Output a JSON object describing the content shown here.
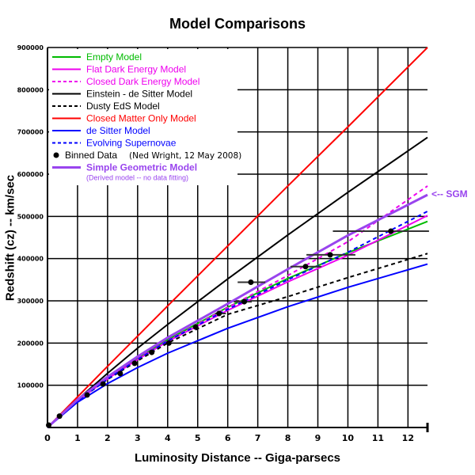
{
  "chart_data": {
    "type": "line",
    "title": "Model Comparisons",
    "xlabel": "Luminosity Distance  --  Giga-parsecs",
    "ylabel": "Redshift (cz)  -- km/sec",
    "xlim": [
      0,
      12.65
    ],
    "ylim": [
      0,
      900000
    ],
    "xticks": [
      0,
      1,
      2,
      3,
      4,
      5,
      6,
      7,
      8,
      9,
      10,
      11,
      12
    ],
    "yticks": [
      100000,
      200000,
      300000,
      400000,
      500000,
      600000,
      700000,
      800000,
      900000
    ],
    "grid": true,
    "legend_position": "top-left",
    "series": [
      {
        "name": "Empty Model",
        "color": "#00bb00",
        "dash": false,
        "x": [
          0,
          1,
          2,
          3,
          4,
          6,
          8,
          10,
          12.65
        ],
        "y": [
          0,
          65000,
          117000,
          165000,
          208000,
          285000,
          353000,
          414000,
          488000
        ]
      },
      {
        "name": "Flat Dark Energy Model",
        "color": "#ee00ee",
        "dash": false,
        "x": [
          0,
          1,
          2,
          3,
          4,
          6,
          8,
          10,
          12.65
        ],
        "y": [
          0,
          63000,
          115500,
          161000,
          204000,
          277500,
          345000,
          408000,
          502000
        ]
      },
      {
        "name": "Closed Dark Energy Model",
        "color": "#ee00ee",
        "dash": true,
        "x": [
          0,
          1,
          2,
          3,
          4,
          6,
          8,
          10,
          12.65
        ],
        "y": [
          0,
          63500,
          116000,
          163000,
          206000,
          284000,
          360000,
          440000,
          572000
        ]
      },
      {
        "name": "Einstein - de Sitter Model",
        "color": "#000000",
        "dash": false,
        "x": [
          0,
          1,
          2,
          3,
          4,
          6,
          8,
          10,
          12.65
        ],
        "y": [
          0,
          66000,
          128500,
          188000,
          244000,
          352000,
          456000,
          557000,
          687000
        ]
      },
      {
        "name": "Dusty EdS Model",
        "color": "#000000",
        "dash": true,
        "x": [
          0,
          1,
          2,
          3,
          4,
          6,
          8,
          10,
          12.65
        ],
        "y": [
          0,
          63000,
          114000,
          158000,
          200000,
          268000,
          310000,
          355000,
          412000
        ]
      },
      {
        "name": "Closed Matter Only Model",
        "color": "#ff0000",
        "dash": false,
        "x": [
          0,
          2,
          4,
          6,
          8,
          10,
          12.65
        ],
        "y": [
          0,
          145000,
          288000,
          430000,
          572000,
          712000,
          900000
        ]
      },
      {
        "name": "de Sitter Model",
        "color": "#0000ff",
        "dash": false,
        "x": [
          0,
          1,
          2,
          3,
          4,
          6,
          8,
          10,
          12.65
        ],
        "y": [
          0,
          60000,
          104000,
          142000,
          176000,
          235000,
          286000,
          332000,
          387000
        ]
      },
      {
        "name": "Evolving Supernovae",
        "color": "#0000ff",
        "dash": true,
        "x": [
          0,
          1,
          2,
          3,
          4,
          6,
          8,
          10,
          12.65
        ],
        "y": [
          0,
          63000,
          115000,
          161000,
          205000,
          280000,
          350000,
          415000,
          512000
        ]
      },
      {
        "name": "Simple Geometric Model",
        "color": "#9944ee",
        "dash": false,
        "x": [
          0,
          1,
          2,
          3,
          4,
          6,
          8,
          10,
          12.65
        ],
        "y": [
          0,
          66000,
          120000,
          168000,
          213000,
          293000,
          375000,
          455000,
          551000
        ]
      }
    ],
    "binned_data": {
      "name": "Binned Data",
      "note": "(Ned Wright, 12 May 2008)",
      "points": [
        {
          "x": 0.04,
          "y": 5600
        },
        {
          "x": 0.4,
          "y": 27000
        },
        {
          "x": 1.32,
          "y": 77000
        },
        {
          "x": 1.85,
          "y": 103000
        },
        {
          "x": 2.42,
          "y": 128000
        },
        {
          "x": 2.9,
          "y": 152000
        },
        {
          "x": 3.47,
          "y": 178000
        },
        {
          "x": 4.04,
          "y": 200000
        },
        {
          "x": 4.93,
          "y": 238000
        },
        {
          "x": 5.71,
          "y": 270000,
          "xerr": [
            5.58,
            5.94
          ]
        },
        {
          "x": 6.55,
          "y": 298000,
          "xerr": [
            6.2,
            6.8
          ]
        },
        {
          "x": 6.77,
          "y": 344000,
          "xerr": [
            6.33,
            7.25
          ]
        },
        {
          "x": 8.59,
          "y": 381000,
          "xerr": [
            8.09,
            9.12
          ]
        },
        {
          "x": 9.41,
          "y": 409000,
          "xerr": [
            8.62,
            10.25
          ]
        },
        {
          "x": 11.43,
          "y": 465000,
          "xerr": [
            9.5,
            12.7
          ]
        }
      ]
    },
    "sgm_subtitle": "(Derived model -- no data fitting)",
    "annotation": "<-- SGM"
  }
}
